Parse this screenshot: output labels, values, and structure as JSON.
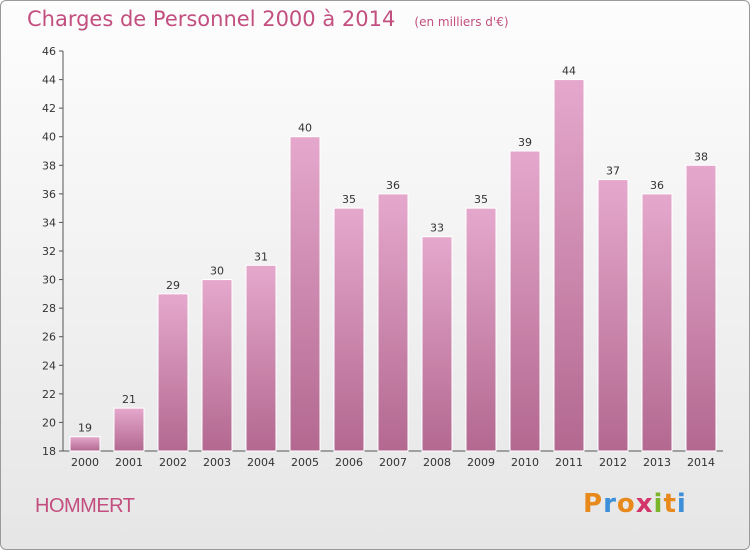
{
  "header": {
    "title": "Charges de Personnel 2000 à 2014",
    "unit": "(en milliers d'€)"
  },
  "footer": {
    "commune": "HOMMERT",
    "logo_text": "Proxiti",
    "logo_colors": [
      "#e8891c",
      "#3c8fd8",
      "#e8891c",
      "#d2356a",
      "#7cb52c",
      "#e8891c",
      "#3c8fd8"
    ]
  },
  "colors": {
    "bar_top": "#e5a8cc",
    "bar_bottom": "#b36890",
    "accent": "#c24f7f"
  },
  "chart_data": {
    "type": "bar",
    "categories": [
      "2000",
      "2001",
      "2002",
      "2003",
      "2004",
      "2005",
      "2006",
      "2007",
      "2008",
      "2009",
      "2010",
      "2011",
      "2012",
      "2013",
      "2014"
    ],
    "values": [
      19,
      21,
      29,
      30,
      31,
      40,
      35,
      36,
      33,
      35,
      39,
      44,
      37,
      36,
      38
    ],
    "ylim": [
      18,
      46
    ],
    "yticks": [
      18,
      20,
      22,
      24,
      26,
      28,
      30,
      32,
      34,
      36,
      38,
      40,
      42,
      44,
      46
    ],
    "grid": false
  }
}
